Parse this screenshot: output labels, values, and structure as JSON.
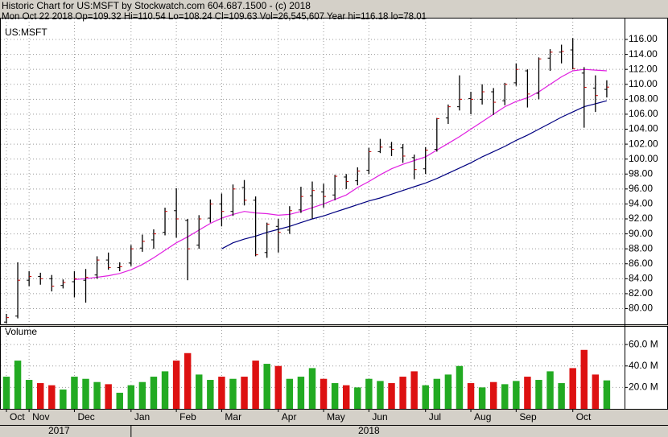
{
  "chart_data": {
    "type": "ohlc",
    "title": "Historic Chart for US:MSFT by Stockwatch.com 604.687.1500 - (c) 2018",
    "subtitle": "Mon Oct 22 2018  Op=109.32  Hi=110.54  Lo=108.24  Cl=109.63  Vol=26,545,607  Year hi=116.18  lo=78.01",
    "symbol_label": "US:MSFT",
    "categories": [
      "Oct",
      null,
      "Nov",
      null,
      null,
      null,
      "Dec",
      null,
      null,
      null,
      null,
      "Jan",
      null,
      null,
      null,
      "Feb",
      null,
      null,
      null,
      "Mar",
      null,
      null,
      null,
      null,
      "Apr",
      null,
      null,
      null,
      "May",
      null,
      null,
      null,
      "Jun",
      null,
      null,
      null,
      null,
      "Jul",
      null,
      null,
      null,
      "Aug",
      null,
      null,
      null,
      "Sep",
      null,
      null,
      null,
      null,
      "Oct",
      null,
      null,
      null
    ],
    "year_labels": [
      "2017",
      "2018"
    ],
    "open": [
      78.2,
      79.0,
      83.8,
      84.3,
      84.0,
      83.1,
      83.6,
      83.8,
      84.5,
      86.5,
      85.5,
      86.1,
      88.1,
      89.2,
      90.2,
      93.1,
      91.8,
      88.5,
      92.1,
      94.0,
      93.0,
      96.2,
      94.5,
      87.5,
      91.0,
      90.5,
      93.2,
      95.1,
      95.6,
      95.2,
      97.6,
      97.1,
      98.5,
      101.0,
      101.6,
      101.5,
      100.2,
      98.7,
      101.3,
      105.5,
      107.0,
      108.1,
      108.0,
      109.0,
      107.8,
      110.2,
      111.8,
      108.8,
      113.5,
      114.3,
      114.6,
      111.5,
      109.5,
      109.32
    ],
    "high": [
      79.3,
      86.2,
      85.0,
      84.8,
      84.5,
      83.9,
      85.0,
      85.3,
      87.0,
      87.5,
      86.2,
      88.5,
      89.9,
      90.6,
      93.5,
      96.1,
      92.0,
      92.5,
      94.6,
      95.4,
      96.6,
      97.2,
      95.0,
      91.5,
      92.0,
      93.7,
      96.3,
      97.0,
      96.7,
      97.9,
      98.0,
      98.9,
      101.5,
      102.7,
      102.3,
      102.0,
      100.6,
      101.6,
      105.5,
      107.3,
      111.2,
      109.0,
      110.0,
      109.5,
      110.2,
      112.8,
      112.0,
      113.6,
      114.7,
      115.3,
      116.18,
      112.3,
      111.2,
      110.54
    ],
    "low": [
      78.01,
      78.7,
      83.0,
      83.2,
      82.3,
      82.7,
      81.5,
      80.8,
      84.0,
      85.2,
      85.0,
      85.7,
      87.6,
      88.0,
      89.8,
      89.5,
      83.8,
      88.0,
      91.5,
      91.0,
      92.4,
      93.8,
      87.0,
      86.8,
      87.5,
      90.0,
      92.8,
      92.0,
      93.5,
      94.5,
      96.0,
      96.5,
      98.0,
      100.8,
      100.4,
      99.5,
      97.3,
      98.0,
      101.0,
      104.7,
      106.5,
      106.0,
      107.3,
      105.9,
      107.2,
      109.8,
      106.9,
      108.0,
      111.8,
      112.8,
      112.0,
      104.2,
      106.3,
      108.24
    ],
    "close": [
      78.8,
      83.8,
      84.3,
      84.0,
      83.0,
      83.5,
      84.0,
      84.2,
      86.5,
      85.5,
      85.6,
      88.0,
      89.0,
      90.0,
      93.0,
      92.0,
      88.0,
      92.0,
      94.0,
      93.0,
      96.0,
      94.5,
      87.2,
      91.3,
      90.2,
      93.1,
      95.0,
      95.8,
      95.0,
      97.7,
      97.0,
      98.4,
      101.0,
      101.6,
      101.3,
      100.4,
      98.6,
      101.2,
      105.4,
      107.0,
      108.0,
      108.0,
      109.0,
      107.6,
      110.0,
      112.0,
      108.7,
      113.4,
      114.3,
      114.4,
      112.1,
      109.6,
      108.5,
      109.63
    ],
    "bar_color": "#000000",
    "ylim": [
      77.9,
      118.8
    ],
    "yticks": [
      {
        "value": 80,
        "label": "80.00"
      },
      {
        "value": 82,
        "label": "82.00"
      },
      {
        "value": 84,
        "label": "84.00"
      },
      {
        "value": 86,
        "label": "86.00"
      },
      {
        "value": 88,
        "label": "88.00"
      },
      {
        "value": 90,
        "label": "90.00"
      },
      {
        "value": 92,
        "label": "92.00"
      },
      {
        "value": 94,
        "label": "94.00"
      },
      {
        "value": 96,
        "label": "96.00"
      },
      {
        "value": 98,
        "label": "98.00"
      },
      {
        "value": 100,
        "label": "100.00"
      },
      {
        "value": 102,
        "label": "102.00"
      },
      {
        "value": 104,
        "label": "104.00"
      },
      {
        "value": 106,
        "label": "106.00"
      },
      {
        "value": 108,
        "label": "108.00"
      },
      {
        "value": 110,
        "label": "110.00"
      },
      {
        "value": 112,
        "label": "112.00"
      },
      {
        "value": 114,
        "label": "114.00"
      },
      {
        "value": 116,
        "label": "116.00"
      }
    ],
    "grid": true,
    "moving_averages": [
      {
        "color": "#e020e0",
        "values": [
          null,
          null,
          null,
          null,
          null,
          null,
          83.9,
          84.0,
          84.2,
          84.4,
          84.7,
          85.2,
          85.9,
          86.8,
          87.8,
          88.8,
          89.6,
          90.5,
          91.4,
          92.1,
          92.6,
          93.0,
          92.8,
          92.7,
          92.5,
          92.6,
          93.0,
          93.5,
          94.0,
          94.6,
          95.2,
          96.2,
          97.0,
          97.9,
          98.7,
          99.3,
          99.8,
          100.3,
          101.2,
          102.1,
          103.0,
          104.0,
          105.0,
          106.0,
          107.0,
          107.7,
          108.2,
          109.0,
          110.0,
          111.0,
          111.8,
          112.0,
          111.9,
          111.8
        ]
      },
      {
        "color": "#000080",
        "values": [
          null,
          null,
          null,
          null,
          null,
          null,
          null,
          null,
          null,
          null,
          null,
          null,
          null,
          null,
          null,
          null,
          null,
          null,
          null,
          88.0,
          88.8,
          89.3,
          89.7,
          90.2,
          90.6,
          91.0,
          91.5,
          92.0,
          92.4,
          92.9,
          93.4,
          93.9,
          94.4,
          94.8,
          95.3,
          95.8,
          96.3,
          96.8,
          97.4,
          98.1,
          98.8,
          99.5,
          100.3,
          101.0,
          101.7,
          102.5,
          103.2,
          104.0,
          104.8,
          105.6,
          106.3,
          107.0,
          107.4,
          107.8
        ]
      }
    ],
    "volume": {
      "label": "Volume",
      "values": [
        30,
        45,
        27,
        24,
        22,
        18,
        30,
        28,
        25,
        23,
        15,
        22,
        25,
        30,
        35,
        45,
        52,
        32,
        27,
        30,
        28,
        30,
        45,
        42,
        40,
        28,
        30,
        38,
        28,
        24,
        22,
        20,
        28,
        26,
        24,
        30,
        35,
        22,
        28,
        32,
        40,
        24,
        20,
        25,
        23,
        26,
        30,
        27,
        35,
        24,
        38,
        55,
        32,
        26.545607
      ],
      "up_color": "#22aa22",
      "down_color": "#dd1111",
      "ylim": [
        0,
        76.6
      ],
      "yticks": [
        {
          "value": 20,
          "label": "20.0 M"
        },
        {
          "value": 40,
          "label": "40.0 M"
        },
        {
          "value": 60,
          "label": "60.0 M"
        }
      ]
    }
  }
}
